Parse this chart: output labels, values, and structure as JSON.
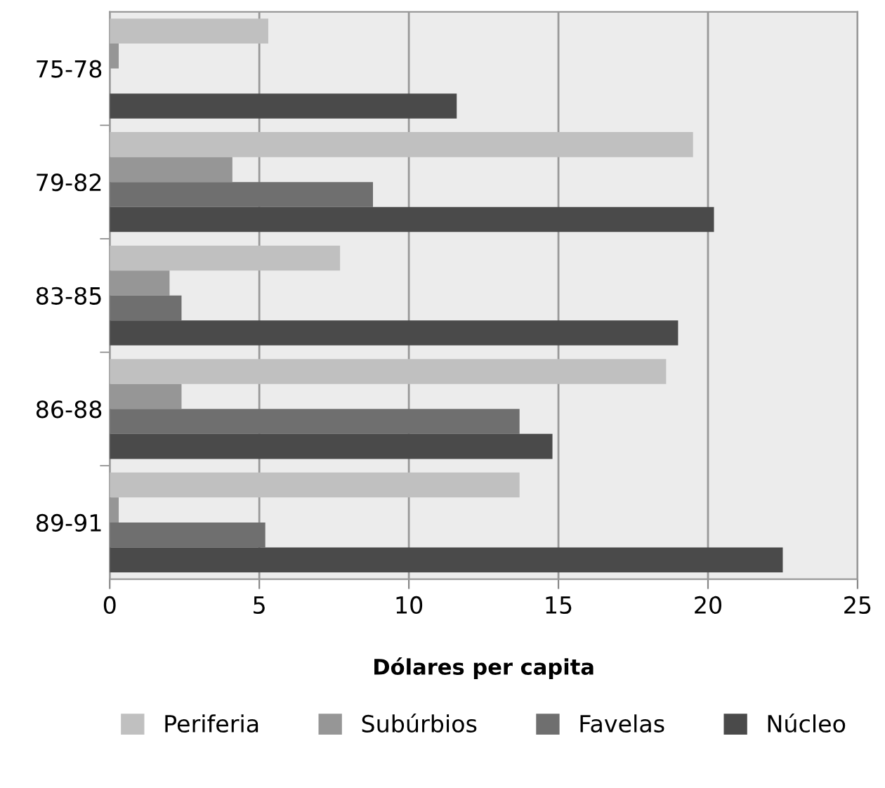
{
  "chart_data": {
    "type": "bar",
    "orientation": "horizontal",
    "xlabel": "Dólares per capita",
    "categories": [
      "75-78",
      "79-82",
      "83-85",
      "86-88",
      "89-91"
    ],
    "series": [
      {
        "name": "Periferia",
        "color": "#c0c0c0",
        "values": [
          5.3,
          19.5,
          7.7,
          18.6,
          13.7
        ]
      },
      {
        "name": "Subúrbios",
        "color": "#969696",
        "values": [
          0.3,
          4.1,
          2.0,
          2.4,
          0.3
        ]
      },
      {
        "name": "Favelas",
        "color": "#6f6f6f",
        "values": [
          0,
          8.8,
          2.4,
          13.7,
          5.2
        ]
      },
      {
        "name": "Núcleo",
        "color": "#4a4a4a",
        "values": [
          11.6,
          20.2,
          19.0,
          14.8,
          22.5
        ]
      }
    ],
    "xlim": [
      0,
      25
    ],
    "xticks": [
      0,
      5,
      10,
      15,
      20,
      25
    ],
    "grid": "x",
    "legend": "bottom"
  }
}
